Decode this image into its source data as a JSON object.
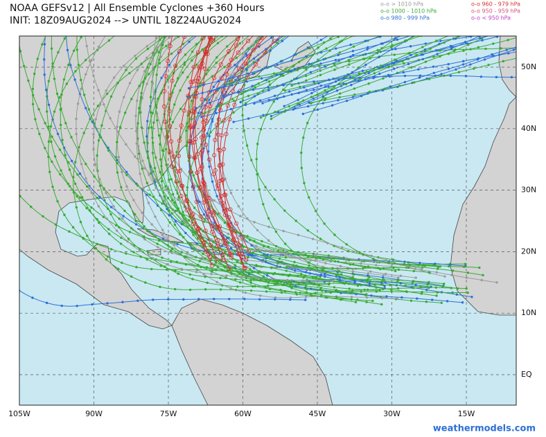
{
  "header": {
    "title": "NOAA GEFSv12 | All Ensemble Cyclones +360 Hours",
    "subtitle": "INIT: 18Z09AUG2024 --> UNTIL 18Z24AUG2024"
  },
  "legend": [
    {
      "label": "o-o > 1010 hPa",
      "color": "#9a9a9a"
    },
    {
      "label": "o-o 1000 - 1010 hPa",
      "color": "#3aaa35"
    },
    {
      "label": "o-o 980 - 999 hPa",
      "color": "#2f6fd6"
    },
    {
      "label": "o-o 960 - 979 hPa",
      "color": "#d62f2f"
    },
    {
      "label": "o-o 950 - 959 hPa",
      "color": "#d6507a"
    },
    {
      "label": "o-o < 950 hPa",
      "color": "#c23bc2"
    }
  ],
  "lon_labels": [
    "105W",
    "90W",
    "75W",
    "60W",
    "45W",
    "30W",
    "15W"
  ],
  "lat_labels": [
    "50N",
    "40N",
    "30N",
    "20N",
    "10N",
    "EQ"
  ],
  "footer": "weathermodels.com"
}
